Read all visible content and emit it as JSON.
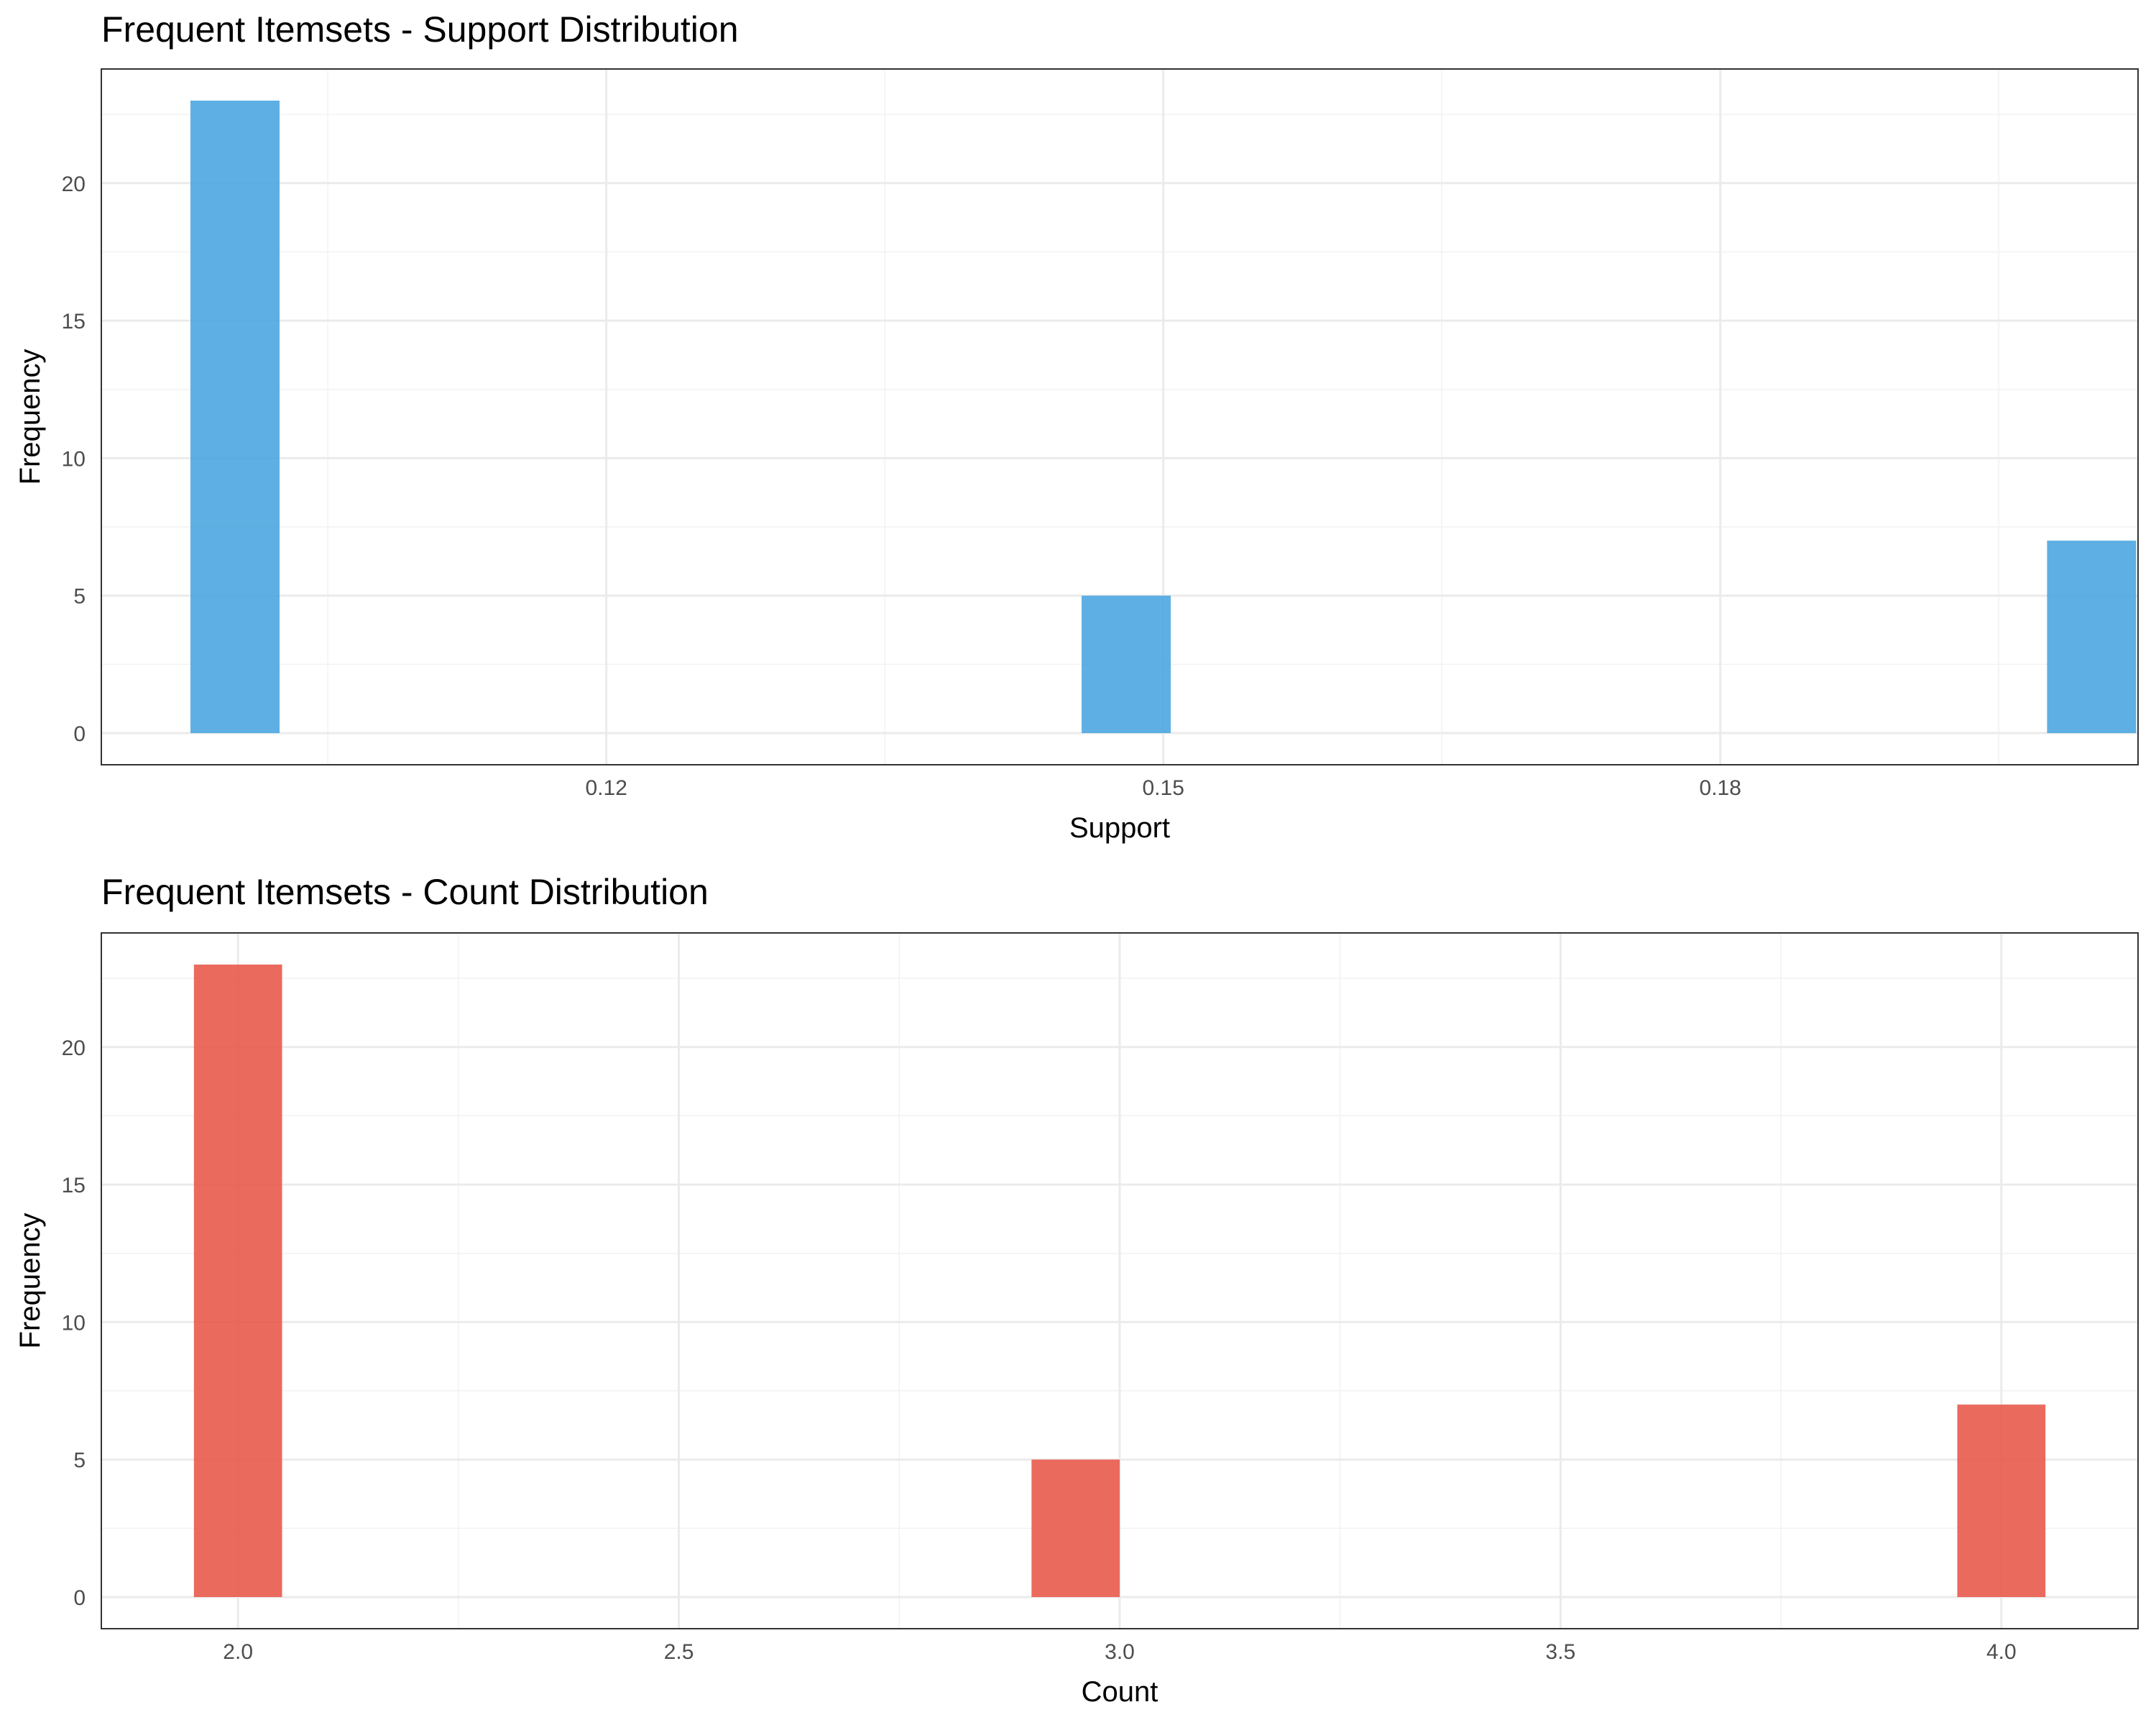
{
  "chart_data": [
    {
      "type": "bar",
      "title": "Frequent Itemsets - Support Distribution",
      "xlabel": "Support",
      "ylabel": "Frequency",
      "bar_color": "#4CA6E0",
      "x_ticks": [
        "0.12",
        "0.15",
        "0.18"
      ],
      "y_ticks": [
        "0",
        "5",
        "10",
        "15",
        "20"
      ],
      "xlim": [
        0.0928,
        0.2025
      ],
      "ylim": [
        -1.15,
        24.15
      ],
      "bin_width": 0.0048,
      "bins": [
        {
          "x": 0.1,
          "count": 23
        },
        {
          "x": 0.148,
          "count": 5
        },
        {
          "x": 0.2,
          "count": 7
        }
      ],
      "grid": true
    },
    {
      "type": "bar",
      "title": "Frequent Itemsets - Count Distribution",
      "xlabel": "Count",
      "ylabel": "Frequency",
      "bar_color": "#E95A4C",
      "x_ticks": [
        "2.0",
        "2.5",
        "3.0",
        "3.5",
        "4.0"
      ],
      "y_ticks": [
        "0",
        "5",
        "10",
        "15",
        "20"
      ],
      "xlim": [
        1.845,
        4.155
      ],
      "ylim": [
        -1.15,
        24.15
      ],
      "bin_width": 0.1,
      "bins": [
        {
          "x": 2.0,
          "count": 23
        },
        {
          "x": 2.95,
          "count": 5
        },
        {
          "x": 4.0,
          "count": 7
        }
      ],
      "grid": true
    }
  ]
}
